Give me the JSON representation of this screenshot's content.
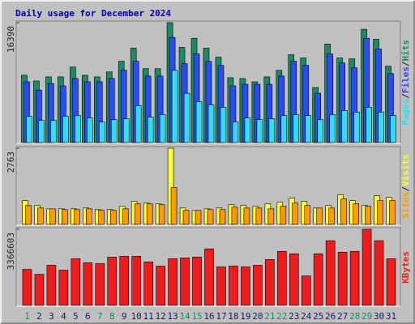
{
  "chart_data": [
    {
      "type": "bar",
      "title": "Daily usage for December 2024",
      "title_color": "#0000aa",
      "ylim": [
        0,
        16390
      ],
      "yticks": [
        16390
      ],
      "legend_separator": "/",
      "series": [
        {
          "name": "Hits",
          "color": "#1c8a66",
          "values": [
            9205,
            8420,
            8981,
            8981,
            10328,
            9205,
            8981,
            9654,
            11114,
            12910,
            10103,
            10103,
            16390,
            13022,
            14257,
            12910,
            11675,
            8868,
            8756,
            8307,
            8981,
            9879,
            12012,
            11563,
            7521,
            13471,
            11563,
            11451,
            15492,
            14145,
            10440
          ]
        },
        {
          "name": "Files",
          "color": "#2a4cf0",
          "values": [
            8310,
            7180,
            8080,
            7750,
            8760,
            8310,
            8310,
            8760,
            9880,
            11110,
            9090,
            9090,
            14370,
            10780,
            12120,
            11110,
            10550,
            7750,
            7970,
            7970,
            7970,
            9090,
            11110,
            10550,
            6740,
            12120,
            10890,
            10220,
            14260,
            12800,
            9430
          ]
        },
        {
          "name": "Pages",
          "color": "#33dcf4",
          "values": [
            3590,
            3030,
            3030,
            3590,
            3700,
            3370,
            2810,
            3140,
            3260,
            5050,
            3480,
            3820,
            9880,
            6740,
            5610,
            5160,
            4830,
            2810,
            3370,
            3140,
            3260,
            3700,
            3820,
            3700,
            3140,
            3820,
            4380,
            4150,
            4830,
            4150,
            3700
          ]
        }
      ]
    },
    {
      "type": "bar",
      "ylim": [
        0,
        2763
      ],
      "yticks": [
        2763
      ],
      "legend_separator": "/",
      "series": [
        {
          "name": "Visits",
          "color": "#ffff33",
          "values": [
            861,
            683,
            564,
            564,
            564,
            594,
            535,
            535,
            654,
            832,
            772,
            743,
            2763,
            594,
            505,
            564,
            594,
            713,
            683,
            654,
            743,
            802,
            951,
            832,
            594,
            683,
            1070,
            861,
            683,
            1040,
            980
          ]
        },
        {
          "name": "Sites",
          "color": "#ff9a00",
          "values": [
            683,
            594,
            564,
            535,
            535,
            564,
            505,
            505,
            564,
            743,
            743,
            713,
            1337,
            505,
            505,
            535,
            535,
            624,
            594,
            594,
            564,
            654,
            772,
            683,
            594,
            594,
            921,
            743,
            654,
            861,
            861
          ]
        }
      ]
    },
    {
      "type": "bar",
      "ylim": [
        0,
        3366603
      ],
      "yticks": [
        3366603
      ],
      "categories": [
        "1",
        "2",
        "3",
        "4",
        "5",
        "6",
        "7",
        "8",
        "9",
        "10",
        "11",
        "12",
        "13",
        "14",
        "15",
        "16",
        "17",
        "18",
        "19",
        "20",
        "21",
        "22",
        "23",
        "24",
        "25",
        "26",
        "27",
        "28",
        "29",
        "30",
        "31"
      ],
      "weekend": [
        true,
        false,
        false,
        false,
        false,
        false,
        true,
        true,
        false,
        false,
        false,
        false,
        false,
        true,
        true,
        false,
        false,
        false,
        false,
        false,
        true,
        true,
        false,
        false,
        false,
        false,
        false,
        true,
        true,
        false,
        false
      ],
      "label_color": "#1a1a6a",
      "weekend_color": "#1c8a66",
      "series": [
        {
          "name": "KBytes",
          "color": "#ee1c1c",
          "values": [
            1593000,
            1376000,
            1774000,
            1557000,
            2063000,
            1882000,
            1846000,
            2136000,
            2172000,
            2172000,
            1919000,
            1738000,
            2063000,
            2100000,
            2136000,
            2498000,
            1701000,
            1738000,
            1701000,
            1774000,
            2027000,
            2389000,
            2281000,
            1303000,
            2281000,
            2860000,
            2353000,
            2389000,
            3366603,
            2860000,
            2063000
          ]
        }
      ]
    }
  ]
}
